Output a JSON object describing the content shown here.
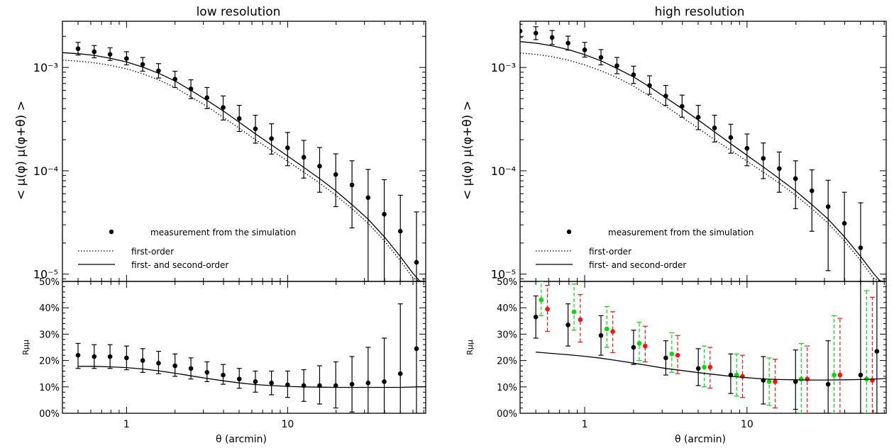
{
  "figure": {
    "xlabel": "θ (arcmin)",
    "ylabel_top": "< μ(φ) μ(φ+θ) >",
    "ylabel_bottom": "Rμμ"
  },
  "chart_data": [
    {
      "type": "scatter",
      "title": "low resolution",
      "xlabel": "θ (arcmin)",
      "ylabel": "< μ(φ) μ(φ+θ) >",
      "xscale": "log",
      "yscale": "log",
      "xlim": [
        0.4,
        72
      ],
      "ylim": [
        8.5e-06,
        0.0028
      ],
      "x_ticks": [
        "1",
        "10"
      ],
      "y_ticks": [
        "10⁻⁵",
        "10⁻⁴",
        "10⁻³"
      ],
      "legend": {
        "placement": "lower-left",
        "entries": [
          "measurement from the simulation",
          "first-order",
          "first- and second-order"
        ]
      },
      "series": [
        {
          "name": "measurement from the simulation",
          "style": "points-with-errorbars",
          "color": "#000000",
          "x": [
            0.5,
            0.63,
            0.79,
            1.0,
            1.26,
            1.58,
            2.0,
            2.51,
            3.16,
            3.98,
            5.01,
            6.31,
            7.94,
            10.0,
            12.6,
            15.8,
            19.9,
            25.1,
            31.6,
            39.8,
            50.1,
            63.1
          ],
          "y": [
            0.00152,
            0.00142,
            0.00134,
            0.00122,
            0.00107,
            0.00093,
            0.00077,
            0.00062,
            0.00051,
            0.00041,
            0.00032,
            0.000255,
            0.000205,
            0.000167,
            0.000135,
            0.000111,
            9.2e-05,
            7.3e-05,
            5.5e-05,
            3.8e-05,
            2.6e-05,
            1.3e-05
          ],
          "y_low": [
            0.00132,
            0.00124,
            0.00117,
            0.00106,
            0.00092,
            0.00079,
            0.00064,
            0.0005,
            0.0004,
            0.00031,
            0.00024,
            0.000185,
            0.000145,
            0.000112,
            8.5e-05,
            6.2e-05,
            4.5e-05,
            2.8e-05,
            8.5e-06,
            8.5e-06,
            8.5e-06,
            8.5e-06
          ],
          "y_high": [
            0.00175,
            0.00163,
            0.00155,
            0.00142,
            0.00125,
            0.00109,
            0.00092,
            0.00076,
            0.00064,
            0.00053,
            0.00043,
            0.000345,
            0.000285,
            0.000235,
            0.000197,
            0.000168,
            0.000146,
            0.000125,
            0.000103,
            8.2e-05,
            5.8e-05,
            4e-05
          ]
        },
        {
          "name": "first-order",
          "style": "dotted",
          "color": "#000000",
          "x": [
            0.4,
            0.5,
            0.63,
            0.79,
            1.0,
            1.26,
            1.58,
            2.0,
            2.51,
            3.16,
            3.98,
            5.01,
            6.31,
            7.94,
            10.0,
            12.6,
            15.8,
            19.9,
            25.1,
            31.6,
            39.8,
            50.1,
            60.0,
            66.0,
            70.0
          ],
          "y": [
            0.00118,
            0.00115,
            0.00111,
            0.00105,
            0.00097,
            0.00087,
            0.00076,
            0.00064,
            0.00052,
            0.00042,
            0.00033,
            0.000258,
            0.0002,
            0.000158,
            0.000124,
            9.7e-05,
            7.6e-05,
            5.8e-05,
            4.3e-05,
            3.1e-05,
            2.1e-05,
            1.35e-05,
            9.2e-06,
            8.5e-06,
            8.5e-06
          ]
        },
        {
          "name": "first- and second-order",
          "style": "solid",
          "color": "#000000",
          "x": [
            0.4,
            0.5,
            0.63,
            0.79,
            1.0,
            1.26,
            1.58,
            2.0,
            2.51,
            3.16,
            3.98,
            5.01,
            6.31,
            7.94,
            10.0,
            12.6,
            15.8,
            19.9,
            25.1,
            31.6,
            39.8,
            50.1,
            60.0,
            66.0,
            71.0
          ],
          "y": [
            0.00139,
            0.00136,
            0.00131,
            0.00123,
            0.00113,
            0.00101,
            0.00088,
            0.00074,
            0.0006,
            0.00048,
            0.00038,
            0.000295,
            0.000228,
            0.000178,
            0.000139,
            0.000108,
            8.4e-05,
            6.4e-05,
            4.7e-05,
            3.4e-05,
            2.3e-05,
            1.48e-05,
            1.02e-05,
            8.6e-06,
            8.5e-06
          ]
        }
      ]
    },
    {
      "type": "scatter",
      "title": "",
      "xlabel": "θ (arcmin)",
      "ylabel": "Rμμ",
      "xscale": "log",
      "xlim": [
        0.4,
        72
      ],
      "ylim": [
        0,
        50
      ],
      "x_ticks": [
        "1",
        "10"
      ],
      "y_ticks": [
        "00%",
        "10%",
        "20%",
        "30%",
        "40%",
        "50%"
      ],
      "series": [
        {
          "name": "",
          "style": "points-with-errorbars",
          "color": "#000000",
          "x": [
            0.5,
            0.63,
            0.79,
            1.0,
            1.26,
            1.58,
            2.0,
            2.51,
            3.16,
            3.98,
            5.01,
            6.31,
            7.94,
            10.0,
            12.6,
            15.8,
            19.9,
            25.1,
            31.6,
            39.8,
            50.1,
            63.1
          ],
          "y": [
            22,
            21.5,
            21.5,
            21,
            20,
            19,
            18,
            17,
            15.5,
            14.5,
            13,
            12,
            11.5,
            10.8,
            10.5,
            10.5,
            10.5,
            11,
            11.5,
            12,
            15,
            24.5
          ],
          "y_low": [
            17,
            17,
            17,
            16.5,
            15.5,
            15,
            14,
            13,
            12,
            11,
            9.5,
            8,
            7,
            6,
            4.5,
            3.5,
            2,
            0.5,
            0,
            0,
            0,
            0
          ],
          "y_high": [
            26.5,
            26,
            26,
            25.5,
            24.5,
            23.5,
            22.5,
            21,
            19.5,
            18.5,
            17,
            16,
            16,
            16,
            16.5,
            18,
            19.5,
            21.5,
            25,
            28.5,
            41.5,
            50
          ]
        },
        {
          "name": "",
          "style": "solid",
          "color": "#000000",
          "x": [
            0.5,
            0.63,
            0.79,
            1.0,
            1.26,
            1.58,
            2.0,
            2.51,
            3.16,
            3.98,
            5.01,
            6.31,
            7.94,
            10.0,
            12.6,
            15.8,
            19.9,
            25.1,
            31.6,
            39.8,
            50.1,
            63.1,
            72.0
          ],
          "y": [
            17.8,
            17.8,
            17.6,
            17.3,
            16.8,
            16.1,
            15.2,
            14.2,
            13.2,
            12.3,
            11.5,
            10.9,
            10.5,
            10.2,
            10.0,
            9.9,
            9.8,
            9.8,
            9.8,
            9.8,
            9.8,
            10.0,
            10.1
          ]
        }
      ]
    },
    {
      "type": "scatter",
      "title": "high resolution",
      "xlabel": "θ (arcmin)",
      "ylabel": "< μ(φ) μ(φ+θ) >",
      "xscale": "log",
      "yscale": "log",
      "xlim": [
        0.4,
        72
      ],
      "ylim": [
        8.5e-06,
        0.0028
      ],
      "x_ticks": [
        "1",
        "10"
      ],
      "y_ticks": [
        "10⁻⁵",
        "10⁻⁴",
        "10⁻³"
      ],
      "legend": {
        "placement": "lower-left",
        "entries": [
          "measurement from the simulation",
          "first-order",
          "first- and second-order"
        ]
      },
      "series": [
        {
          "name": "measurement from the simulation",
          "style": "points-with-errorbars",
          "color": "#000000",
          "x": [
            0.4,
            0.5,
            0.63,
            0.79,
            1.0,
            1.26,
            1.58,
            2.0,
            2.51,
            3.16,
            3.98,
            5.01,
            6.31,
            7.94,
            10.0,
            12.6,
            15.8,
            19.9,
            25.1,
            31.6,
            39.8,
            50.1
          ],
          "y": [
            0.00225,
            0.00215,
            0.00195,
            0.00172,
            0.00148,
            0.00125,
            0.00104,
            0.00085,
            0.00067,
            0.00053,
            0.00042,
            0.00033,
            0.00026,
            0.00021,
            0.000165,
            0.000132,
            0.000105,
            8.4e-05,
            6.4e-05,
            4.5e-05,
            3.1e-05,
            1.8e-05
          ],
          "y_low": [
            0.00195,
            0.00186,
            0.00167,
            0.00147,
            0.00126,
            0.00106,
            0.00087,
            0.0007,
            0.00055,
            0.00043,
            0.00033,
            0.00025,
            0.00019,
            0.000148,
            0.000112,
            8.4e-05,
            6.2e-05,
            4.3e-05,
            2.6e-05,
            1.08e-05,
            8.5e-06,
            8.5e-06
          ],
          "y_high": [
            0.00262,
            0.00248,
            0.00228,
            0.00201,
            0.00175,
            0.00149,
            0.00125,
            0.00103,
            0.00083,
            0.00067,
            0.00054,
            0.00043,
            0.000345,
            0.000282,
            0.000227,
            0.000186,
            0.000152,
            0.000125,
            0.000102,
            8.1e-05,
            6.2e-05,
            4.9e-05
          ]
        },
        {
          "name": "first-order",
          "style": "dotted",
          "color": "#000000",
          "x": [
            0.4,
            0.5,
            0.63,
            0.79,
            1.0,
            1.26,
            1.58,
            2.0,
            2.51,
            3.16,
            3.98,
            5.01,
            6.31,
            7.94,
            10.0,
            12.6,
            15.8,
            19.9,
            25.1,
            31.6,
            39.8,
            50.1,
            60.0,
            66.0,
            70.0
          ],
          "y": [
            0.00138,
            0.00134,
            0.00127,
            0.00118,
            0.00106,
            0.00093,
            0.0008,
            0.00066,
            0.00053,
            0.00042,
            0.00033,
            0.000258,
            0.0002,
            0.000158,
            0.000124,
            9.7e-05,
            7.6e-05,
            5.8e-05,
            4.3e-05,
            3.1e-05,
            2.1e-05,
            1.35e-05,
            9.2e-06,
            8.5e-06,
            8.5e-06
          ]
        },
        {
          "name": "first- and second-order",
          "style": "solid",
          "color": "#000000",
          "x": [
            0.4,
            0.5,
            0.63,
            0.79,
            1.0,
            1.26,
            1.58,
            2.0,
            2.51,
            3.16,
            3.98,
            5.01,
            6.31,
            7.94,
            10.0,
            12.6,
            15.8,
            19.9,
            25.1,
            31.6,
            39.8,
            50.1,
            60.0,
            66.0,
            71.0
          ],
          "y": [
            0.00178,
            0.00172,
            0.00162,
            0.00149,
            0.00133,
            0.00116,
            0.00098,
            0.00081,
            0.00065,
            0.00051,
            0.0004,
            0.00031,
            0.000238,
            0.000183,
            0.000141,
            0.000109,
            8.4e-05,
            6.4e-05,
            4.7e-05,
            3.4e-05,
            2.3e-05,
            1.48e-05,
            1.02e-05,
            8.6e-06,
            8.5e-06
          ]
        }
      ]
    },
    {
      "type": "scatter",
      "title": "",
      "xlabel": "θ (arcmin)",
      "ylabel": "Rμμ",
      "xscale": "log",
      "xlim": [
        0.4,
        72
      ],
      "ylim": [
        0,
        50
      ],
      "x_ticks": [
        "1",
        "10"
      ],
      "y_ticks": [
        "00%",
        "10%",
        "20%",
        "30%",
        "40%",
        "50%"
      ],
      "series": [
        {
          "name": "",
          "style": "points-with-errorbars",
          "color": "#000000",
          "x": [
            0.5,
            0.79,
            1.26,
            2.0,
            3.16,
            5.01,
            7.94,
            12.6,
            19.9,
            31.6,
            50.1,
            63.1
          ],
          "y": [
            36.5,
            33.5,
            29.5,
            25,
            21,
            17,
            14.5,
            12.5,
            12,
            11,
            14.5,
            23.5
          ],
          "y_low": [
            28.5,
            25.5,
            22,
            18.5,
            14.5,
            10.5,
            7.5,
            3.5,
            1.5,
            0,
            0,
            0
          ],
          "y_high": [
            44.5,
            41.5,
            37,
            31.5,
            27.5,
            24.5,
            22.5,
            21.5,
            24,
            27.5,
            50,
            50
          ]
        },
        {
          "name": "",
          "style": "points-with-dashed-errorbars",
          "color": "#00dd00",
          "x": [
            0.54,
            0.86,
            1.37,
            2.17,
            3.44,
            5.45,
            8.63,
            13.7,
            21.6,
            34.4,
            54.5
          ],
          "y": [
            43,
            38.5,
            32,
            26.5,
            22.5,
            17.5,
            14.5,
            12,
            13,
            14.5,
            13
          ],
          "y_low": [
            37,
            31.5,
            25,
            20,
            15.5,
            10,
            6.5,
            3,
            0,
            0,
            0
          ],
          "y_high": [
            50,
            49,
            40.5,
            34.5,
            30.5,
            25.5,
            22.5,
            21,
            26.5,
            37,
            46.5
          ]
        },
        {
          "name": "",
          "style": "points-with-dashed-errorbars",
          "color": "#ff1111",
          "x": [
            0.59,
            0.94,
            1.49,
            2.36,
            3.74,
            5.92,
            9.38,
            14.9,
            23.5,
            37.4,
            59.2
          ],
          "y": [
            39.5,
            35.5,
            31,
            25.5,
            22,
            17.5,
            14,
            12,
            13,
            14.5,
            12.5
          ],
          "y_low": [
            31,
            27,
            23,
            19.5,
            15,
            9.5,
            6,
            2,
            0,
            0,
            0
          ],
          "y_high": [
            48.5,
            45,
            38.5,
            33,
            29.5,
            25,
            22,
            20.5,
            25.5,
            36,
            44
          ]
        },
        {
          "name": "",
          "style": "solid",
          "color": "#000000",
          "x": [
            0.5,
            0.63,
            0.79,
            1.0,
            1.26,
            1.58,
            2.0,
            2.51,
            3.16,
            3.98,
            5.01,
            6.31,
            7.94,
            10.0,
            12.6,
            15.8,
            19.9,
            25.1,
            31.6,
            39.8,
            50.1,
            63.1,
            72.0
          ],
          "y": [
            23.2,
            22.7,
            22.2,
            21.6,
            20.9,
            20.0,
            19.0,
            18.0,
            17.0,
            16.2,
            15.4,
            14.7,
            14.0,
            13.5,
            13.0,
            12.8,
            12.7,
            12.6,
            12.6,
            12.7,
            12.8,
            13.0,
            13.2
          ]
        }
      ]
    }
  ]
}
